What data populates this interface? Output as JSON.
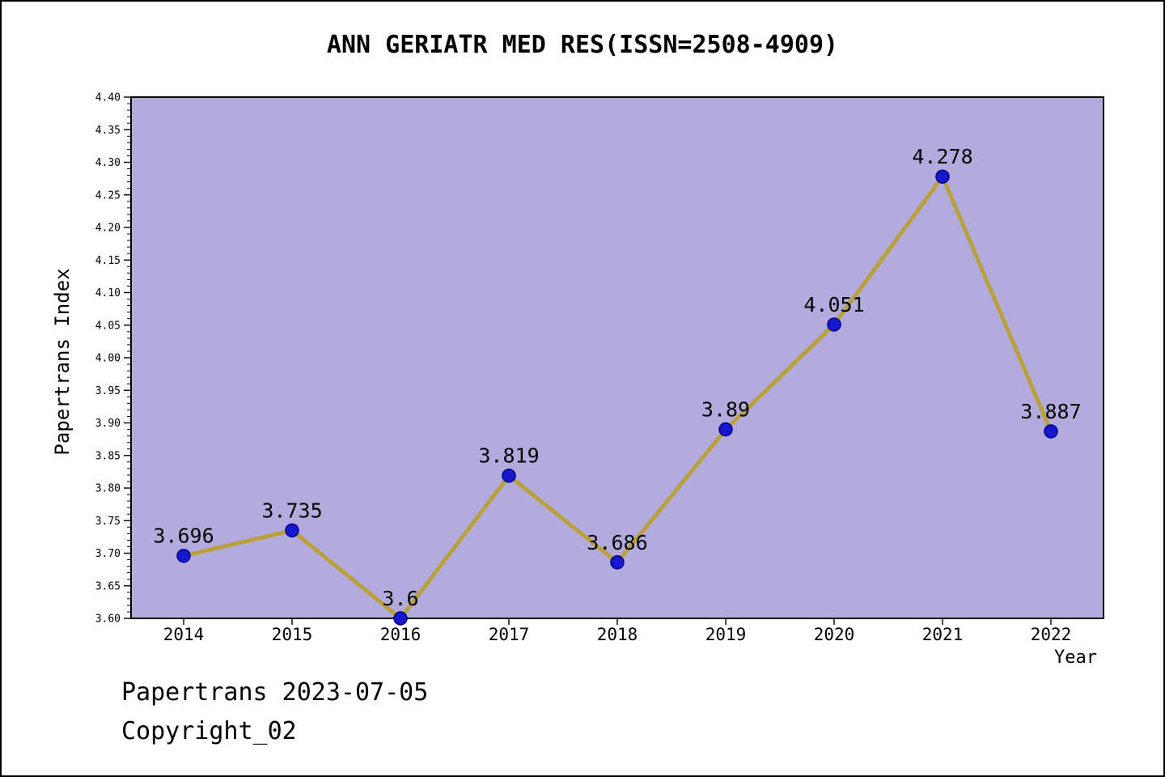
{
  "page": {
    "background": "#ffffff",
    "border_color": "#000000"
  },
  "chart_data": {
    "type": "line",
    "title": "ANN GERIATR MED RES(ISSN=2508-4909)",
    "xlabel": "Year",
    "ylabel": "Papertrans Index",
    "categories": [
      "2014",
      "2015",
      "2016",
      "2017",
      "2018",
      "2019",
      "2020",
      "2021",
      "2022"
    ],
    "series": [
      {
        "name": "Papertrans Index",
        "values": [
          3.696,
          3.735,
          3.6,
          3.819,
          3.686,
          3.89,
          4.051,
          4.278,
          3.887
        ],
        "point_labels": [
          "3.696",
          "3.735",
          "3.6",
          "3.819",
          "3.686",
          "3.89",
          "4.051",
          "4.278",
          "3.887"
        ]
      }
    ],
    "ylim": [
      3.6,
      4.4
    ],
    "ytick_step": 0.05,
    "yminor_step": 0.01,
    "ytick_decimals": 2,
    "grid": false,
    "legend_position": "none",
    "colors": {
      "plot_background": "#b3abde",
      "line": "#b8a13a",
      "marker_fill": "#1717cd",
      "marker_edge": "#00008b",
      "axis": "#000000",
      "text": "#000000"
    }
  },
  "footer": {
    "line1": "Papertrans 2023-07-05",
    "line2": "Copyright_02"
  }
}
